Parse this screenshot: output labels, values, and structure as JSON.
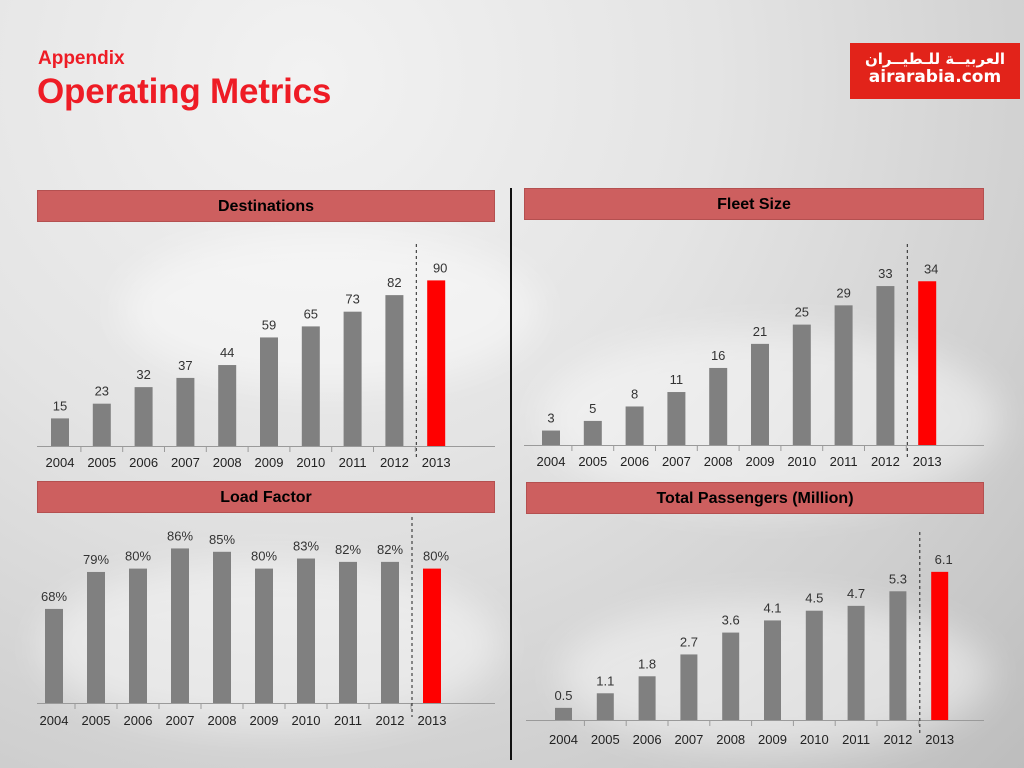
{
  "header": {
    "subtitle": "Appendix",
    "title": "Operating Metrics"
  },
  "logo": {
    "arabic_text": "العربيــة للـطيــران",
    "text": "airarabia.com"
  },
  "colors": {
    "accent": "#ee1c25",
    "bar": "#808080",
    "highlight": "#ff0000",
    "panel_header": "#cd5f5f"
  },
  "chart_data": [
    {
      "type": "bar",
      "title": "Destinations",
      "categories": [
        "2004",
        "2005",
        "2006",
        "2007",
        "2008",
        "2009",
        "2010",
        "2011",
        "2012",
        "2013"
      ],
      "values": [
        15,
        23,
        32,
        37,
        44,
        59,
        65,
        73,
        82,
        90
      ],
      "labels": [
        "15",
        "23",
        "32",
        "37",
        "44",
        "59",
        "65",
        "73",
        "82",
        "90"
      ],
      "highlight_index": 9,
      "ylim": [
        0,
        100
      ]
    },
    {
      "type": "bar",
      "title": "Fleet Size",
      "categories": [
        "2004",
        "2005",
        "2006",
        "2007",
        "2008",
        "2009",
        "2010",
        "2011",
        "2012",
        "2013"
      ],
      "values": [
        3,
        5,
        8,
        11,
        16,
        21,
        25,
        29,
        33,
        34
      ],
      "labels": [
        "3",
        "5",
        "8",
        "11",
        "16",
        "21",
        "25",
        "29",
        "33",
        "34"
      ],
      "highlight_index": 9,
      "ylim": [
        0,
        38
      ]
    },
    {
      "type": "bar",
      "title": "Load Factor",
      "categories": [
        "2004",
        "2005",
        "2006",
        "2007",
        "2008",
        "2009",
        "2010",
        "2011",
        "2012",
        "2013"
      ],
      "values": [
        68,
        79,
        80,
        86,
        85,
        80,
        83,
        82,
        82,
        80
      ],
      "labels": [
        "68%",
        "79%",
        "80%",
        "86%",
        "85%",
        "80%",
        "83%",
        "82%",
        "82%",
        "80%"
      ],
      "highlight_index": 9,
      "ylim": [
        40,
        90
      ]
    },
    {
      "type": "bar",
      "title": "Total Passengers (Million)",
      "categories": [
        "2004",
        "2005",
        "2006",
        "2007",
        "2008",
        "2009",
        "2010",
        "2011",
        "2012",
        "2013"
      ],
      "values": [
        0.5,
        1.1,
        1.8,
        2.7,
        3.6,
        4.1,
        4.5,
        4.7,
        5.3,
        6.1
      ],
      "labels": [
        "0.5",
        "1.1",
        "1.8",
        "2.7",
        "3.6",
        "4.1",
        "4.5",
        "4.7",
        "5.3",
        "6.1"
      ],
      "highlight_index": 9,
      "ylim": [
        0,
        7
      ]
    }
  ]
}
